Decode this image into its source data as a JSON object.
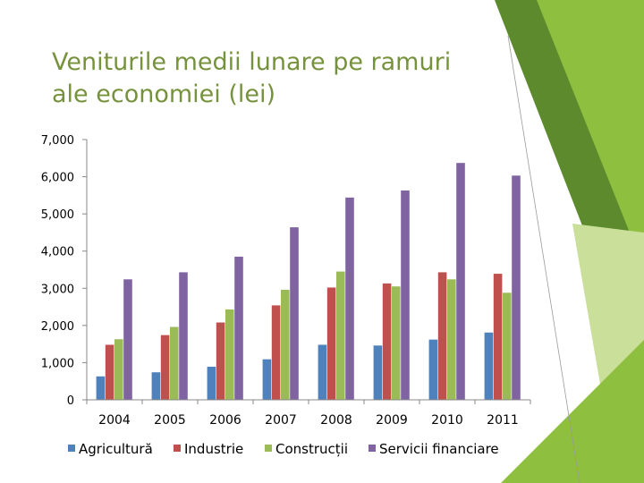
{
  "slide": {
    "title": "Veniturile medii lunare pe ramuri\nale economiei (lei)"
  },
  "colors": {
    "title": "#76923c",
    "accent_dark": "#5e8a2e",
    "accent_light": "#8fbf3f",
    "accent_pale": "#c9df9a"
  },
  "chart_data": {
    "type": "bar",
    "title": "Veniturile medii lunare pe ramuri ale economiei (lei)",
    "categories": [
      "2004",
      "2005",
      "2006",
      "2007",
      "2008",
      "2009",
      "2010",
      "2011"
    ],
    "ylim": [
      0,
      7000
    ],
    "yticks": [
      0,
      1000,
      2000,
      3000,
      4000,
      5000,
      6000,
      7000
    ],
    "ytick_labels": [
      "0",
      "1,000",
      "2,000",
      "3,000",
      "4,000",
      "5,000",
      "6,000",
      "7,000"
    ],
    "grid": false,
    "legend_position": "bottom",
    "series": [
      {
        "name": "Agricultură",
        "color": "#4f81bd",
        "values": [
          630,
          740,
          890,
          1090,
          1480,
          1460,
          1620,
          1810
        ]
      },
      {
        "name": "Industrie",
        "color": "#c0504d",
        "values": [
          1480,
          1740,
          2080,
          2540,
          3020,
          3130,
          3430,
          3390
        ]
      },
      {
        "name": "Construcții",
        "color": "#9bbb59",
        "values": [
          1630,
          1960,
          2430,
          2960,
          3450,
          3050,
          3240,
          2880
        ]
      },
      {
        "name": "Servicii financiare",
        "color": "#8064a2",
        "values": [
          3240,
          3430,
          3850,
          4640,
          5440,
          5630,
          6370,
          6030
        ]
      }
    ]
  }
}
